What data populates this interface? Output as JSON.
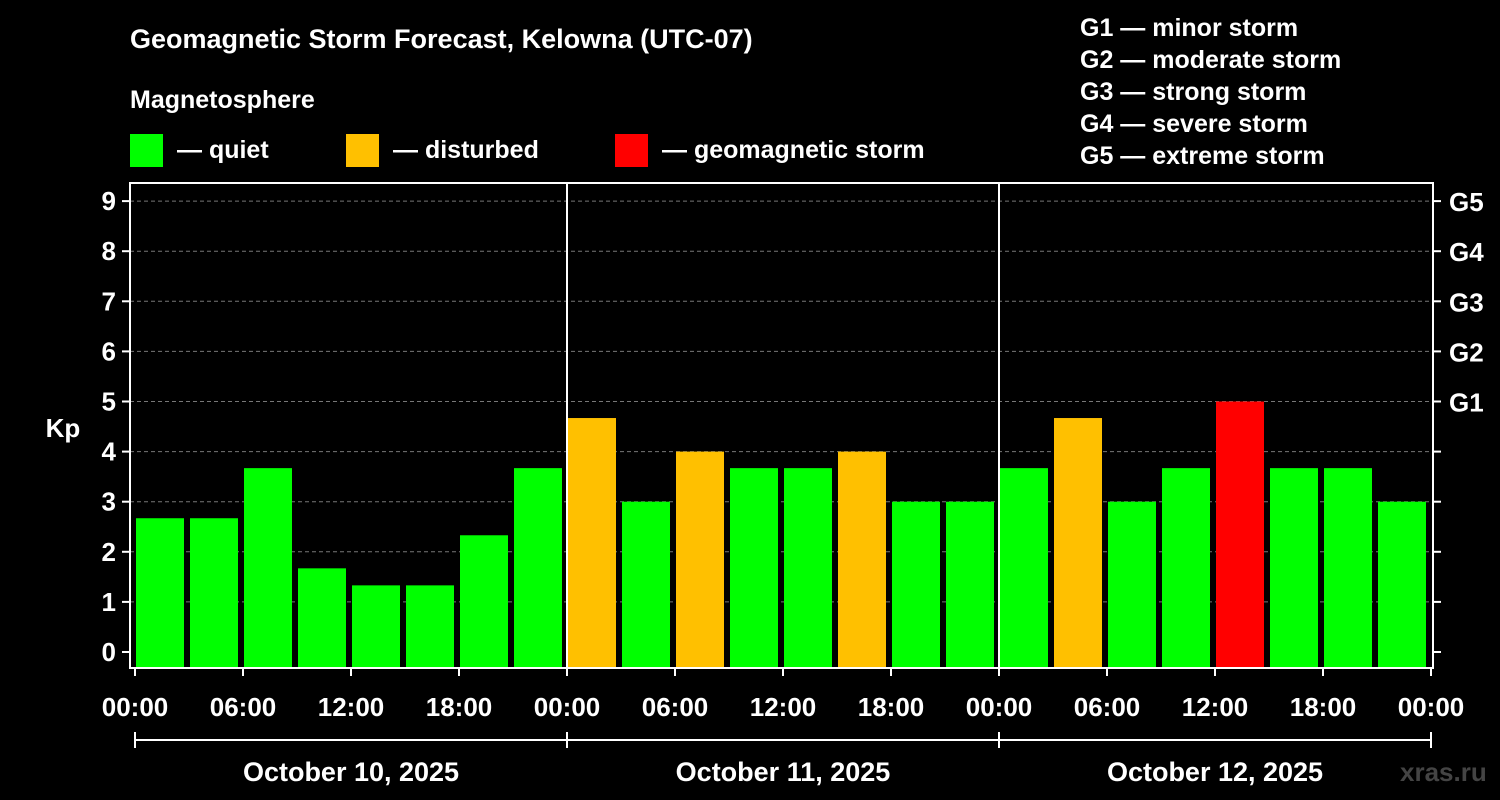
{
  "title": "Geomagnetic Storm Forecast, Kelowna (UTC-07)",
  "magnetosphere": {
    "heading": "Magnetosphere",
    "items": [
      {
        "label": "— quiet",
        "color": "#00ff00"
      },
      {
        "label": "— disturbed",
        "color": "#ffc000"
      },
      {
        "label": "— geomagnetic storm",
        "color": "#ff0000"
      }
    ]
  },
  "g_legend": [
    "G1 — minor storm",
    "G2 — moderate storm",
    "G3 — strong storm",
    "G4 — severe storm",
    "G5 — extreme storm"
  ],
  "watermark": "xras.ru",
  "chart_data": {
    "type": "bar",
    "ylabel": "Kp",
    "ylim": [
      0,
      9
    ],
    "y_ticks": [
      "0",
      "1",
      "2",
      "3",
      "4",
      "5",
      "6",
      "7",
      "8",
      "9"
    ],
    "right_ticks": [
      {
        "value": 5,
        "label": "G1"
      },
      {
        "value": 6,
        "label": "G2"
      },
      {
        "value": 7,
        "label": "G3"
      },
      {
        "value": 8,
        "label": "G4"
      },
      {
        "value": 9,
        "label": "G5"
      }
    ],
    "grid": "dashed horizontal at each integer Kp",
    "x_tick_labels": [
      "00:00",
      "06:00",
      "12:00",
      "18:00",
      "00:00",
      "06:00",
      "12:00",
      "18:00",
      "00:00",
      "06:00",
      "12:00",
      "18:00",
      "00:00"
    ],
    "days": [
      "October 10, 2025",
      "October 11, 2025",
      "October 12, 2025"
    ],
    "bar_start_times": [
      "October 10, 2025 00:00",
      "October 10, 2025 03:00",
      "October 10, 2025 06:00",
      "October 10, 2025 09:00",
      "October 10, 2025 12:00",
      "October 10, 2025 15:00",
      "October 10, 2025 18:00",
      "October 10, 2025 21:00",
      "October 11, 2025 00:00",
      "October 11, 2025 03:00",
      "October 11, 2025 06:00",
      "October 11, 2025 09:00",
      "October 11, 2025 12:00",
      "October 11, 2025 15:00",
      "October 11, 2025 18:00",
      "October 11, 2025 21:00",
      "October 12, 2025 00:00",
      "October 12, 2025 03:00",
      "October 12, 2025 06:00",
      "October 12, 2025 09:00",
      "October 12, 2025 12:00",
      "October 12, 2025 15:00",
      "October 12, 2025 18:00",
      "October 12, 2025 21:00"
    ],
    "values": [
      2.67,
      2.67,
      3.67,
      1.67,
      1.33,
      1.33,
      2.33,
      3.67,
      4.67,
      3.0,
      4.0,
      3.67,
      3.67,
      4.0,
      3.0,
      3.0,
      3.67,
      4.67,
      3.0,
      3.67,
      5.0,
      3.67,
      3.67,
      3.0
    ],
    "status": [
      "quiet",
      "quiet",
      "quiet",
      "quiet",
      "quiet",
      "quiet",
      "quiet",
      "quiet",
      "disturbed",
      "quiet",
      "disturbed",
      "quiet",
      "quiet",
      "disturbed",
      "quiet",
      "quiet",
      "quiet",
      "disturbed",
      "quiet",
      "quiet",
      "geomagnetic storm",
      "quiet",
      "quiet",
      "quiet"
    ],
    "colors": {
      "quiet": "#00ff00",
      "disturbed": "#ffc000",
      "geomagnetic storm": "#ff0000"
    }
  }
}
